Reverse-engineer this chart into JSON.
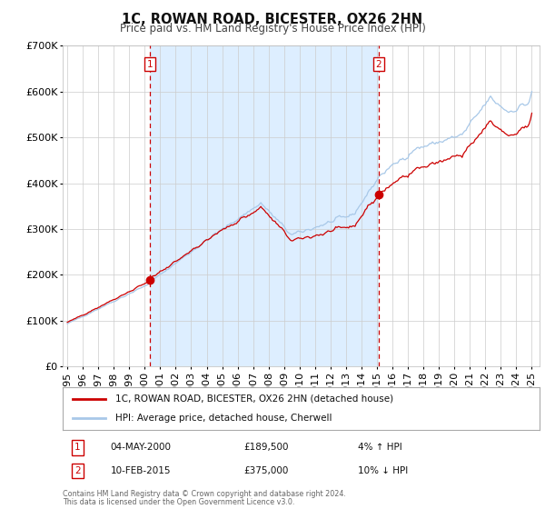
{
  "title": "1C, ROWAN ROAD, BICESTER, OX26 2HN",
  "subtitle": "Price paid vs. HM Land Registry's House Price Index (HPI)",
  "ylim": [
    0,
    700000
  ],
  "yticks": [
    0,
    100000,
    200000,
    300000,
    400000,
    500000,
    600000,
    700000
  ],
  "ytick_labels": [
    "£0",
    "£100K",
    "£200K",
    "£300K",
    "£400K",
    "£500K",
    "£600K",
    "£700K"
  ],
  "hpi_line_color": "#a8c8e8",
  "price_line_color": "#cc0000",
  "marker_color": "#cc0000",
  "dashed_line_color": "#cc0000",
  "bg_fill_color": "#ddeeff",
  "grid_color": "#cccccc",
  "box_edge_color": "#cc0000",
  "annotation1_label": "1",
  "annotation1_date": "04-MAY-2000",
  "annotation1_price": "£189,500",
  "annotation1_hpi": "4% ↑ HPI",
  "annotation1_year": 2000.34,
  "annotation2_label": "2",
  "annotation2_date": "10-FEB-2015",
  "annotation2_price": "£375,000",
  "annotation2_hpi": "10% ↓ HPI",
  "annotation2_year": 2015.11,
  "sale1_value": 189500,
  "sale2_value": 375000,
  "legend1": "1C, ROWAN ROAD, BICESTER, OX26 2HN (detached house)",
  "legend2": "HPI: Average price, detached house, Cherwell",
  "footer1": "Contains HM Land Registry data © Crown copyright and database right 2024.",
  "footer2": "This data is licensed under the Open Government Licence v3.0."
}
